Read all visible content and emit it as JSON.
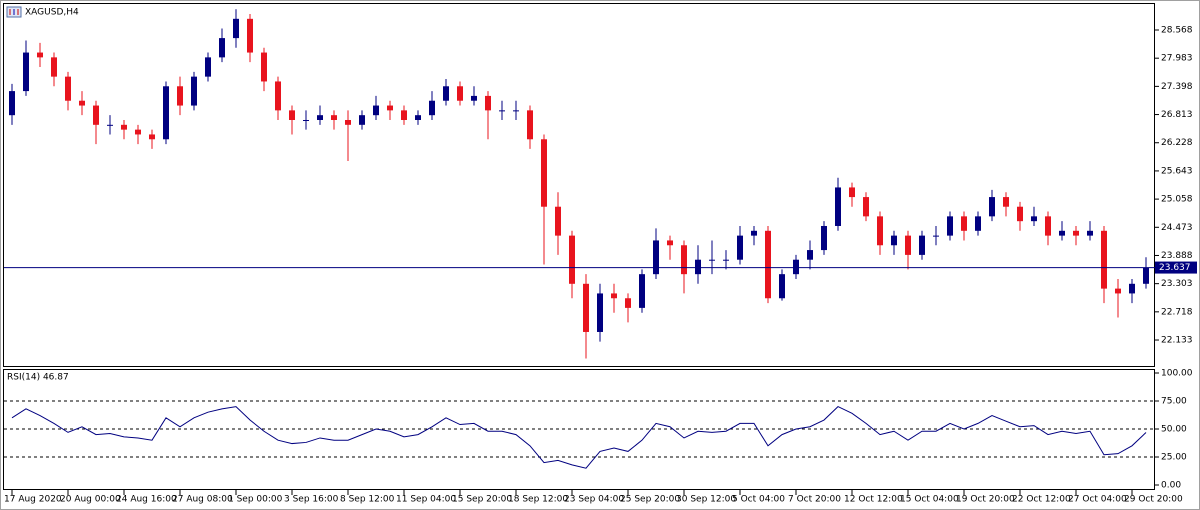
{
  "chart_data": [
    {
      "type": "candlestick",
      "title": "XAGUSD,H4",
      "open": [
        26.8,
        27.3,
        28.1,
        28.0,
        27.6,
        27.1,
        27.0,
        26.6,
        26.6,
        26.5,
        26.4,
        26.3,
        27.4,
        27.0,
        27.6,
        28.0,
        28.4,
        28.8,
        28.1,
        27.5,
        26.9,
        26.7,
        26.7,
        26.8,
        26.7,
        26.6,
        26.8,
        27.0,
        26.9,
        26.7,
        26.8,
        27.1,
        27.4,
        27.1,
        27.2,
        26.9,
        26.9,
        26.9,
        26.3,
        24.9,
        24.3,
        23.3,
        22.3,
        23.1,
        23.0,
        22.8,
        23.5,
        24.2,
        24.1,
        23.5,
        23.8,
        23.8,
        23.8,
        24.3,
        24.4,
        23.0,
        23.5,
        23.8,
        24.0,
        24.5,
        25.3,
        25.1,
        24.7,
        24.1,
        24.3,
        23.9,
        24.3,
        24.3,
        24.7,
        24.4,
        24.7,
        25.1,
        24.9,
        24.6,
        24.7,
        24.3,
        24.4,
        24.3,
        24.4,
        23.2,
        23.1,
        23.3
      ],
      "high": [
        27.45,
        28.35,
        28.3,
        28.1,
        27.7,
        27.3,
        27.1,
        26.8,
        26.7,
        26.6,
        26.5,
        27.5,
        27.6,
        27.7,
        28.1,
        28.6,
        29.0,
        28.9,
        28.2,
        27.6,
        27.0,
        26.9,
        27.0,
        26.9,
        26.9,
        26.9,
        27.2,
        27.1,
        27.0,
        26.9,
        27.3,
        27.55,
        27.5,
        27.4,
        27.3,
        27.1,
        27.1,
        27.0,
        26.4,
        25.2,
        24.4,
        23.5,
        23.3,
        23.3,
        23.1,
        23.6,
        24.45,
        24.3,
        24.2,
        24.1,
        24.2,
        24.0,
        24.5,
        24.5,
        24.5,
        23.6,
        23.9,
        24.2,
        24.6,
        25.5,
        25.4,
        25.2,
        24.8,
        24.4,
        24.4,
        24.4,
        24.5,
        24.8,
        24.8,
        24.8,
        25.25,
        25.2,
        25.0,
        24.9,
        24.8,
        24.6,
        24.5,
        24.6,
        24.5,
        23.4,
        23.4,
        23.85
      ],
      "low": [
        26.6,
        27.2,
        27.8,
        27.4,
        26.9,
        26.8,
        26.2,
        26.4,
        26.3,
        26.2,
        26.1,
        26.2,
        26.8,
        26.9,
        27.5,
        27.9,
        28.2,
        27.9,
        27.3,
        26.7,
        26.4,
        26.5,
        26.6,
        26.5,
        25.85,
        26.5,
        26.7,
        26.7,
        26.6,
        26.6,
        26.7,
        27.0,
        27.0,
        27.0,
        26.3,
        26.7,
        26.7,
        26.1,
        23.7,
        23.9,
        23.0,
        21.75,
        22.1,
        22.7,
        22.5,
        22.7,
        23.4,
        23.8,
        23.1,
        23.3,
        23.5,
        23.6,
        23.7,
        24.1,
        22.9,
        22.95,
        23.4,
        23.6,
        23.9,
        24.4,
        24.9,
        24.6,
        23.9,
        23.9,
        23.6,
        23.8,
        24.1,
        24.2,
        24.2,
        24.3,
        24.6,
        24.7,
        24.4,
        24.5,
        24.1,
        24.2,
        24.1,
        24.2,
        22.9,
        22.6,
        22.9,
        23.2
      ],
      "close": [
        27.3,
        28.1,
        28.0,
        27.6,
        27.1,
        27.0,
        26.6,
        26.6,
        26.5,
        26.4,
        26.3,
        27.4,
        27.0,
        27.6,
        28.0,
        28.4,
        28.8,
        28.1,
        27.5,
        26.9,
        26.7,
        26.7,
        26.8,
        26.7,
        26.6,
        26.8,
        27.0,
        26.9,
        26.7,
        26.8,
        27.1,
        27.4,
        27.1,
        27.2,
        26.9,
        26.9,
        26.9,
        26.3,
        24.9,
        24.3,
        23.3,
        22.3,
        23.1,
        23.0,
        22.8,
        23.5,
        24.2,
        24.1,
        23.5,
        23.8,
        23.8,
        23.8,
        24.3,
        24.4,
        23.0,
        23.5,
        23.8,
        24.0,
        24.5,
        25.3,
        25.1,
        24.7,
        24.1,
        24.3,
        23.9,
        24.3,
        24.3,
        24.7,
        24.4,
        24.7,
        25.1,
        24.9,
        24.6,
        24.7,
        24.3,
        24.4,
        24.3,
        24.4,
        23.2,
        23.1,
        23.3,
        23.637
      ],
      "up_color": "#000080",
      "down_color": "#e8141e",
      "current_price": 23.637,
      "ylim": [
        21.573,
        29.087
      ],
      "yticks": [
        28.568,
        27.983,
        27.398,
        26.813,
        26.228,
        25.643,
        25.058,
        24.473,
        23.888,
        23.303,
        22.718,
        22.133
      ],
      "xticks": [
        {
          "value": 0,
          "label": "17 Aug 2020"
        },
        {
          "value": 4,
          "label": "20 Aug 00:00"
        },
        {
          "value": 8,
          "label": "24 Aug 16:00"
        },
        {
          "value": 12,
          "label": "27 Aug 08:00"
        },
        {
          "value": 16,
          "label": "1 Sep 00:00"
        },
        {
          "value": 20,
          "label": "3 Sep 16:00"
        },
        {
          "value": 24,
          "label": "8 Sep 12:00"
        },
        {
          "value": 28,
          "label": "11 Sep 04:00"
        },
        {
          "value": 32,
          "label": "15 Sep 20:00"
        },
        {
          "value": 36,
          "label": "18 Sep 12:00"
        },
        {
          "value": 40,
          "label": "23 Sep 04:00"
        },
        {
          "value": 44,
          "label": "25 Sep 20:00"
        },
        {
          "value": 48,
          "label": "30 Sep 12:00"
        },
        {
          "value": 52,
          "label": "5 Oct 04:00"
        },
        {
          "value": 56,
          "label": "7 Oct 20:00"
        },
        {
          "value": 60,
          "label": "12 Oct 12:00"
        },
        {
          "value": 64,
          "label": "15 Oct 04:00"
        },
        {
          "value": 68,
          "label": "19 Oct 20:00"
        },
        {
          "value": 72,
          "label": "22 Oct 12:00"
        },
        {
          "value": 76,
          "label": "27 Oct 04:00"
        },
        {
          "value": 80,
          "label": "29 Oct 20:00"
        }
      ]
    },
    {
      "type": "line",
      "title": "RSI(14) 46.87",
      "color": "#000080",
      "values": [
        60,
        68,
        62,
        55,
        47,
        52,
        45,
        46,
        43,
        42,
        40,
        60,
        52,
        60,
        65,
        68,
        70,
        58,
        48,
        40,
        37,
        38,
        42,
        40,
        40,
        45,
        50,
        48,
        43,
        45,
        52,
        60,
        54,
        55,
        48,
        48,
        45,
        35,
        20,
        22,
        18,
        15,
        30,
        33,
        30,
        40,
        55,
        52,
        42,
        48,
        47,
        48,
        55,
        55,
        35,
        45,
        50,
        52,
        58,
        70,
        64,
        55,
        45,
        48,
        40,
        48,
        48,
        55,
        50,
        55,
        62,
        57,
        52,
        53,
        45,
        48,
        46,
        48,
        27,
        28,
        35,
        46.87
      ],
      "ylim": [
        0,
        100
      ],
      "yticks": [
        {
          "value": 100,
          "label": "100.00"
        },
        {
          "value": 75,
          "label": "75.00"
        },
        {
          "value": 50,
          "label": "50.00"
        },
        {
          "value": 25,
          "label": "25.00"
        },
        {
          "value": 0,
          "label": "0.00"
        }
      ],
      "levels": [
        75,
        50,
        25
      ]
    }
  ]
}
